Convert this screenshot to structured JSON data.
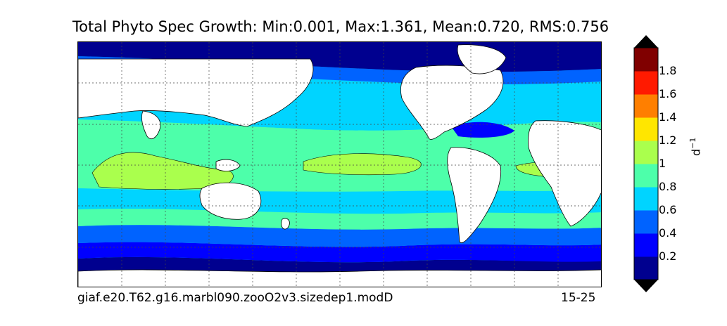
{
  "title": "Total Phyto Spec Growth: Min:0.001, Max:1.361, Mean:0.720, RMS:0.756",
  "footer": {
    "run_id": "giaf.e20.T62.g16.marbl090.zooO2v3.sizedep1.modD",
    "years": "15-25"
  },
  "colorbar": {
    "unit_base": "d",
    "unit_exp": "−1",
    "ticks": [
      "0.2",
      "0.4",
      "0.6",
      "0.8",
      "1",
      "1.2",
      "1.4",
      "1.6",
      "1.8"
    ],
    "levels": [
      0,
      0.2,
      0.4,
      0.6,
      0.8,
      1.0,
      1.2,
      1.4,
      1.6,
      1.8,
      2.0
    ],
    "colors": [
      "#00008f",
      "#0000ff",
      "#0063ff",
      "#00d4ff",
      "#4dffaa",
      "#aaff4d",
      "#ffe600",
      "#ff7f00",
      "#ff1a00",
      "#800000"
    ],
    "extend_colors": {
      "low": "#000000",
      "high": "#000000"
    }
  },
  "map": {
    "projection": "cylindrical",
    "land_color": "#ffffff",
    "gridlines": true
  }
}
